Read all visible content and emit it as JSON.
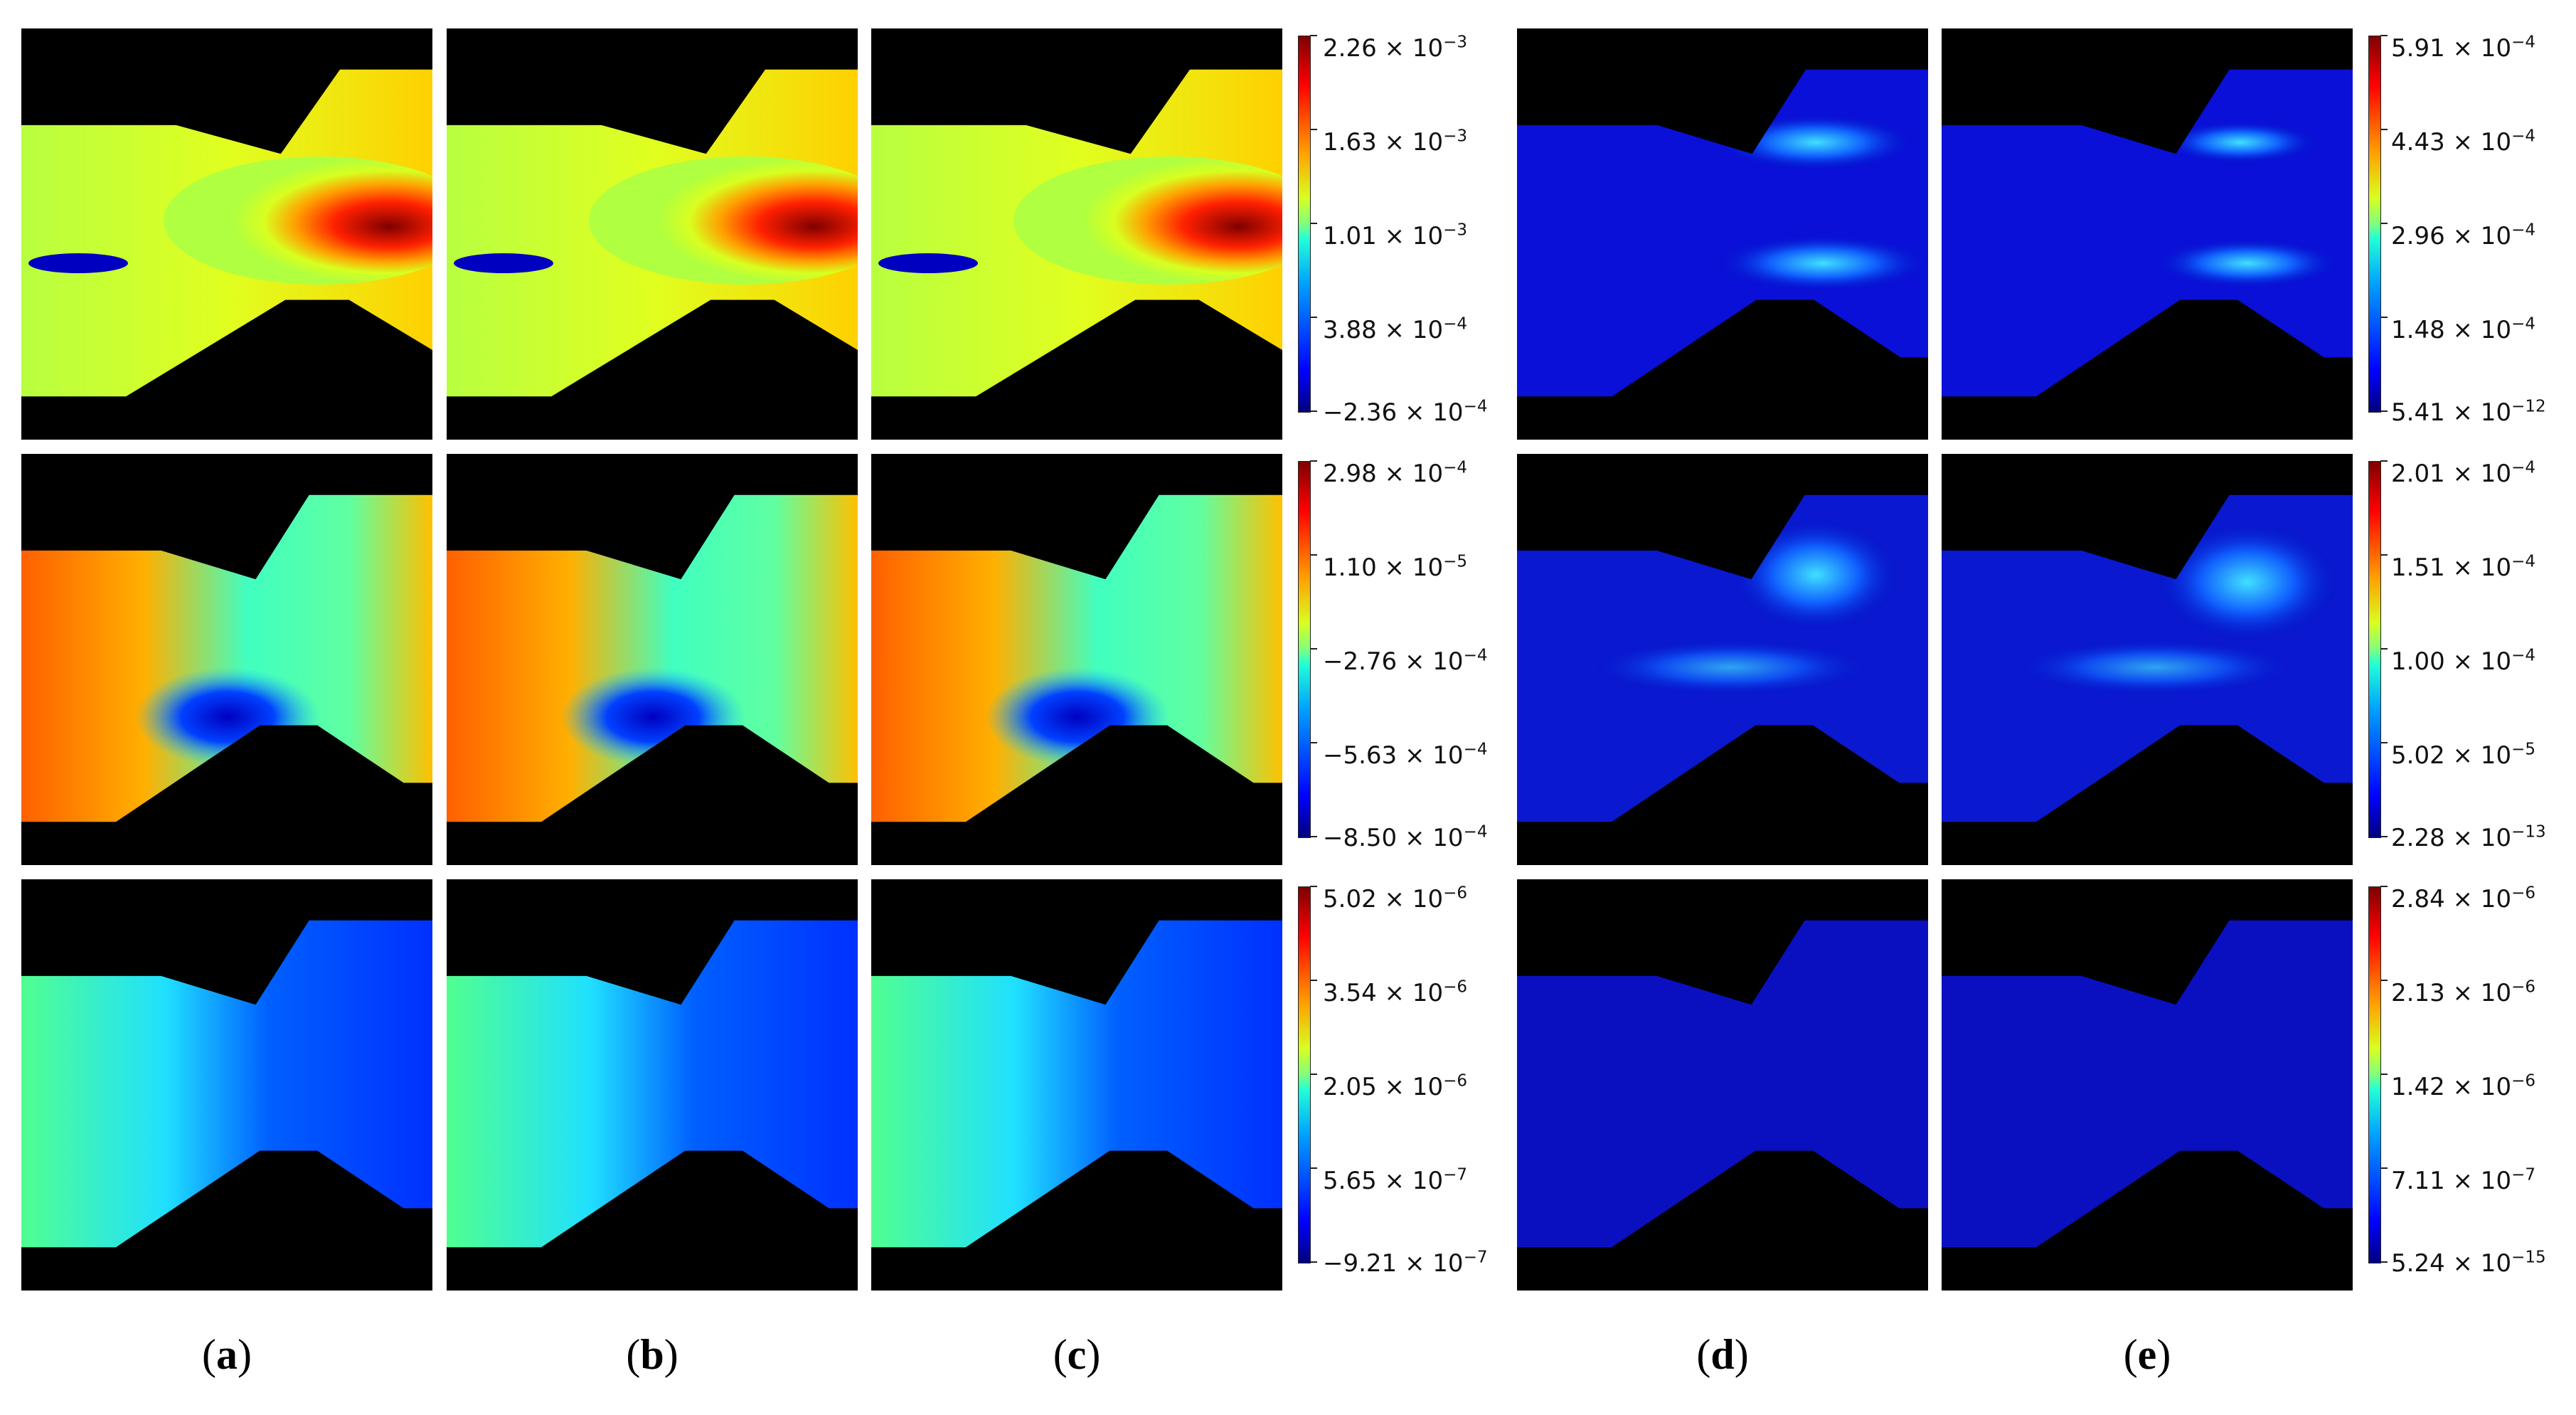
{
  "figure": {
    "rows": [
      {
        "name": "row-1",
        "colorbar_left": [
          "2.26 × 10",
          "1.63 × 10",
          "1.01 × 10",
          "3.88 × 10",
          "−2.36 × 10"
        ],
        "colorbar_left_exp": [
          "−3",
          "−3",
          "−3",
          "−4",
          "−4"
        ],
        "colorbar_right": [
          "5.91 × 10",
          "4.43 × 10",
          "2.96 × 10",
          "1.48 × 10",
          "5.41 × 10"
        ],
        "colorbar_right_exp": [
          "−4",
          "−4",
          "−4",
          "−4",
          "−12"
        ]
      },
      {
        "name": "row-2",
        "colorbar_left": [
          "2.98 × 10",
          "1.10 × 10",
          "−2.76 × 10",
          "−5.63 × 10",
          "−8.50 × 10"
        ],
        "colorbar_left_exp": [
          "−4",
          "−5",
          "−4",
          "−4",
          "−4"
        ],
        "colorbar_right": [
          "2.01 × 10",
          "1.51 × 10",
          "1.00 × 10",
          "5.02 × 10",
          "2.28 × 10"
        ],
        "colorbar_right_exp": [
          "−4",
          "−4",
          "−4",
          "−5",
          "−13"
        ]
      },
      {
        "name": "row-3",
        "colorbar_left": [
          "5.02 × 10",
          "3.54 × 10",
          "2.05 × 10",
          "5.65 × 10",
          "−9.21 × 10"
        ],
        "colorbar_left_exp": [
          "−6",
          "−6",
          "−6",
          "−7",
          "−7"
        ],
        "colorbar_right": [
          "2.84 × 10",
          "2.13 × 10",
          "1.42 × 10",
          "7.11 × 10",
          "5.24 × 10"
        ],
        "colorbar_right_exp": [
          "−6",
          "−6",
          "−6",
          "−7",
          "−15"
        ]
      }
    ],
    "panel_labels": {
      "a": {
        "open": "(",
        "letter": "a",
        "close": ")"
      },
      "b": {
        "open": "(",
        "letter": "b",
        "close": ")"
      },
      "c": {
        "open": "(",
        "letter": "c",
        "close": ")"
      },
      "d": {
        "open": "(",
        "letter": "d",
        "close": ")"
      },
      "e": {
        "open": "(",
        "letter": "e",
        "close": ")"
      }
    },
    "colormap": "jet"
  }
}
